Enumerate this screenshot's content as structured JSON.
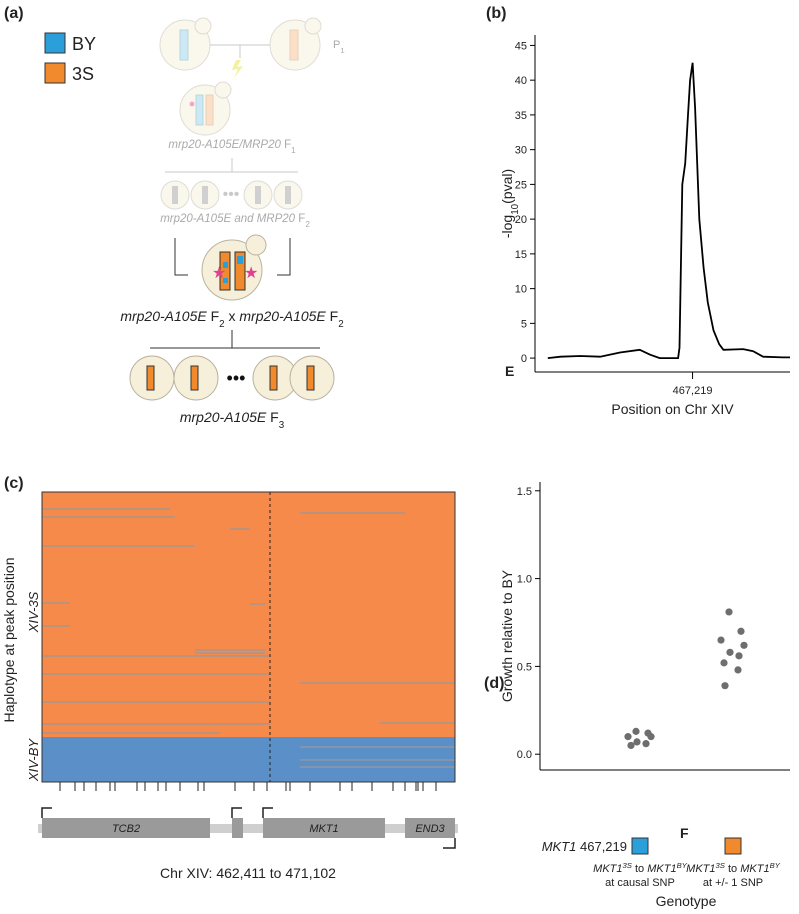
{
  "panel_labels": [
    "(a)",
    "(b)",
    "(c)",
    "(d)"
  ],
  "diagram": {
    "legend": [
      {
        "label": "BY",
        "color": "#2b9fd9"
      },
      {
        "label": "3S",
        "color": "#f08a2c"
      }
    ],
    "p1": [
      "P",
      "1"
    ],
    "f1": [
      "mrp20-A105E/MRP20",
      " F",
      "1"
    ],
    "f2": [
      "mrp20-A105E and MRP20",
      " F",
      "2"
    ],
    "cross": [
      "mrp20-A105E",
      " F",
      "2",
      " x ",
      "mrp20-A105E",
      " F",
      "2"
    ],
    "f3": [
      "mrp20-A105E",
      " F",
      "3"
    ]
  },
  "haplotype_map": {
    "y_label": "Haplotype at peak position",
    "groups": [
      "XIV-3S",
      "XIV-BY"
    ],
    "group_colors": [
      "#f58a4b",
      "#5b8fc8"
    ],
    "genes": [
      "TCB2",
      "MKT1",
      "END3"
    ],
    "x_label": "Chr XIV: 462,411 to 471,102"
  },
  "chart_data": [
    {
      "type": "line",
      "y_label": [
        "-log",
        "10",
        "(pval)"
      ],
      "x_label": "Position on Chr XIV",
      "annotation": "E",
      "color": "#000000",
      "x": [
        365000,
        374000,
        388000,
        402000,
        416000,
        430000,
        437000,
        444000,
        457000,
        458000,
        460000,
        462000,
        464000,
        465500,
        467219,
        469000,
        470500,
        472000,
        475000,
        478000,
        482000,
        486000,
        489000,
        503000,
        510000,
        517000,
        531000,
        536000
      ],
      "values": [
        0,
        0.2,
        0.3,
        0.2,
        0.8,
        1.2,
        0.5,
        0,
        0,
        1.5,
        25,
        28,
        35,
        40,
        42.5,
        36,
        28,
        20,
        13,
        8,
        4,
        2,
        1.2,
        1.3,
        1.0,
        0.2,
        0.1,
        0.1
      ],
      "xlim": [
        356000,
        536000
      ],
      "xticks": [
        {
          "value": 467219,
          "label": "467,219"
        }
      ],
      "ylim": [
        -2,
        46.5
      ],
      "yticks": [
        0,
        5,
        10,
        15,
        20,
        25,
        30,
        35,
        40,
        45
      ]
    },
    {
      "type": "strip",
      "y_label": "Growth relative to BY",
      "x_label": "Genotype",
      "annotation": "F",
      "marker_label": [
        "MKT1",
        " 467,219"
      ],
      "categories": [
        [
          "MKT1",
          "3S",
          " to ",
          "MKT1",
          "BY",
          "at causal SNP"
        ],
        [
          "MKT1",
          "3S",
          " to ",
          "MKT1",
          "BY",
          "at +/- 1 SNP"
        ]
      ],
      "category_colors": [
        "#2b9fd9",
        "#f08a2c"
      ],
      "point_color": "#6e6e6e",
      "values": [
        [
          0.13,
          0.12,
          0.1,
          0.1,
          0.07,
          0.06,
          0.05
        ],
        [
          0.81,
          0.7,
          0.65,
          0.62,
          0.58,
          0.56,
          0.52,
          0.48,
          0.39
        ]
      ],
      "ylim": [
        -0.09,
        1.55
      ],
      "yticks": [
        {
          "value": 0,
          "label": "0.0"
        },
        0.5,
        {
          "value": 1,
          "label": "1.0"
        },
        1.5
      ]
    }
  ]
}
